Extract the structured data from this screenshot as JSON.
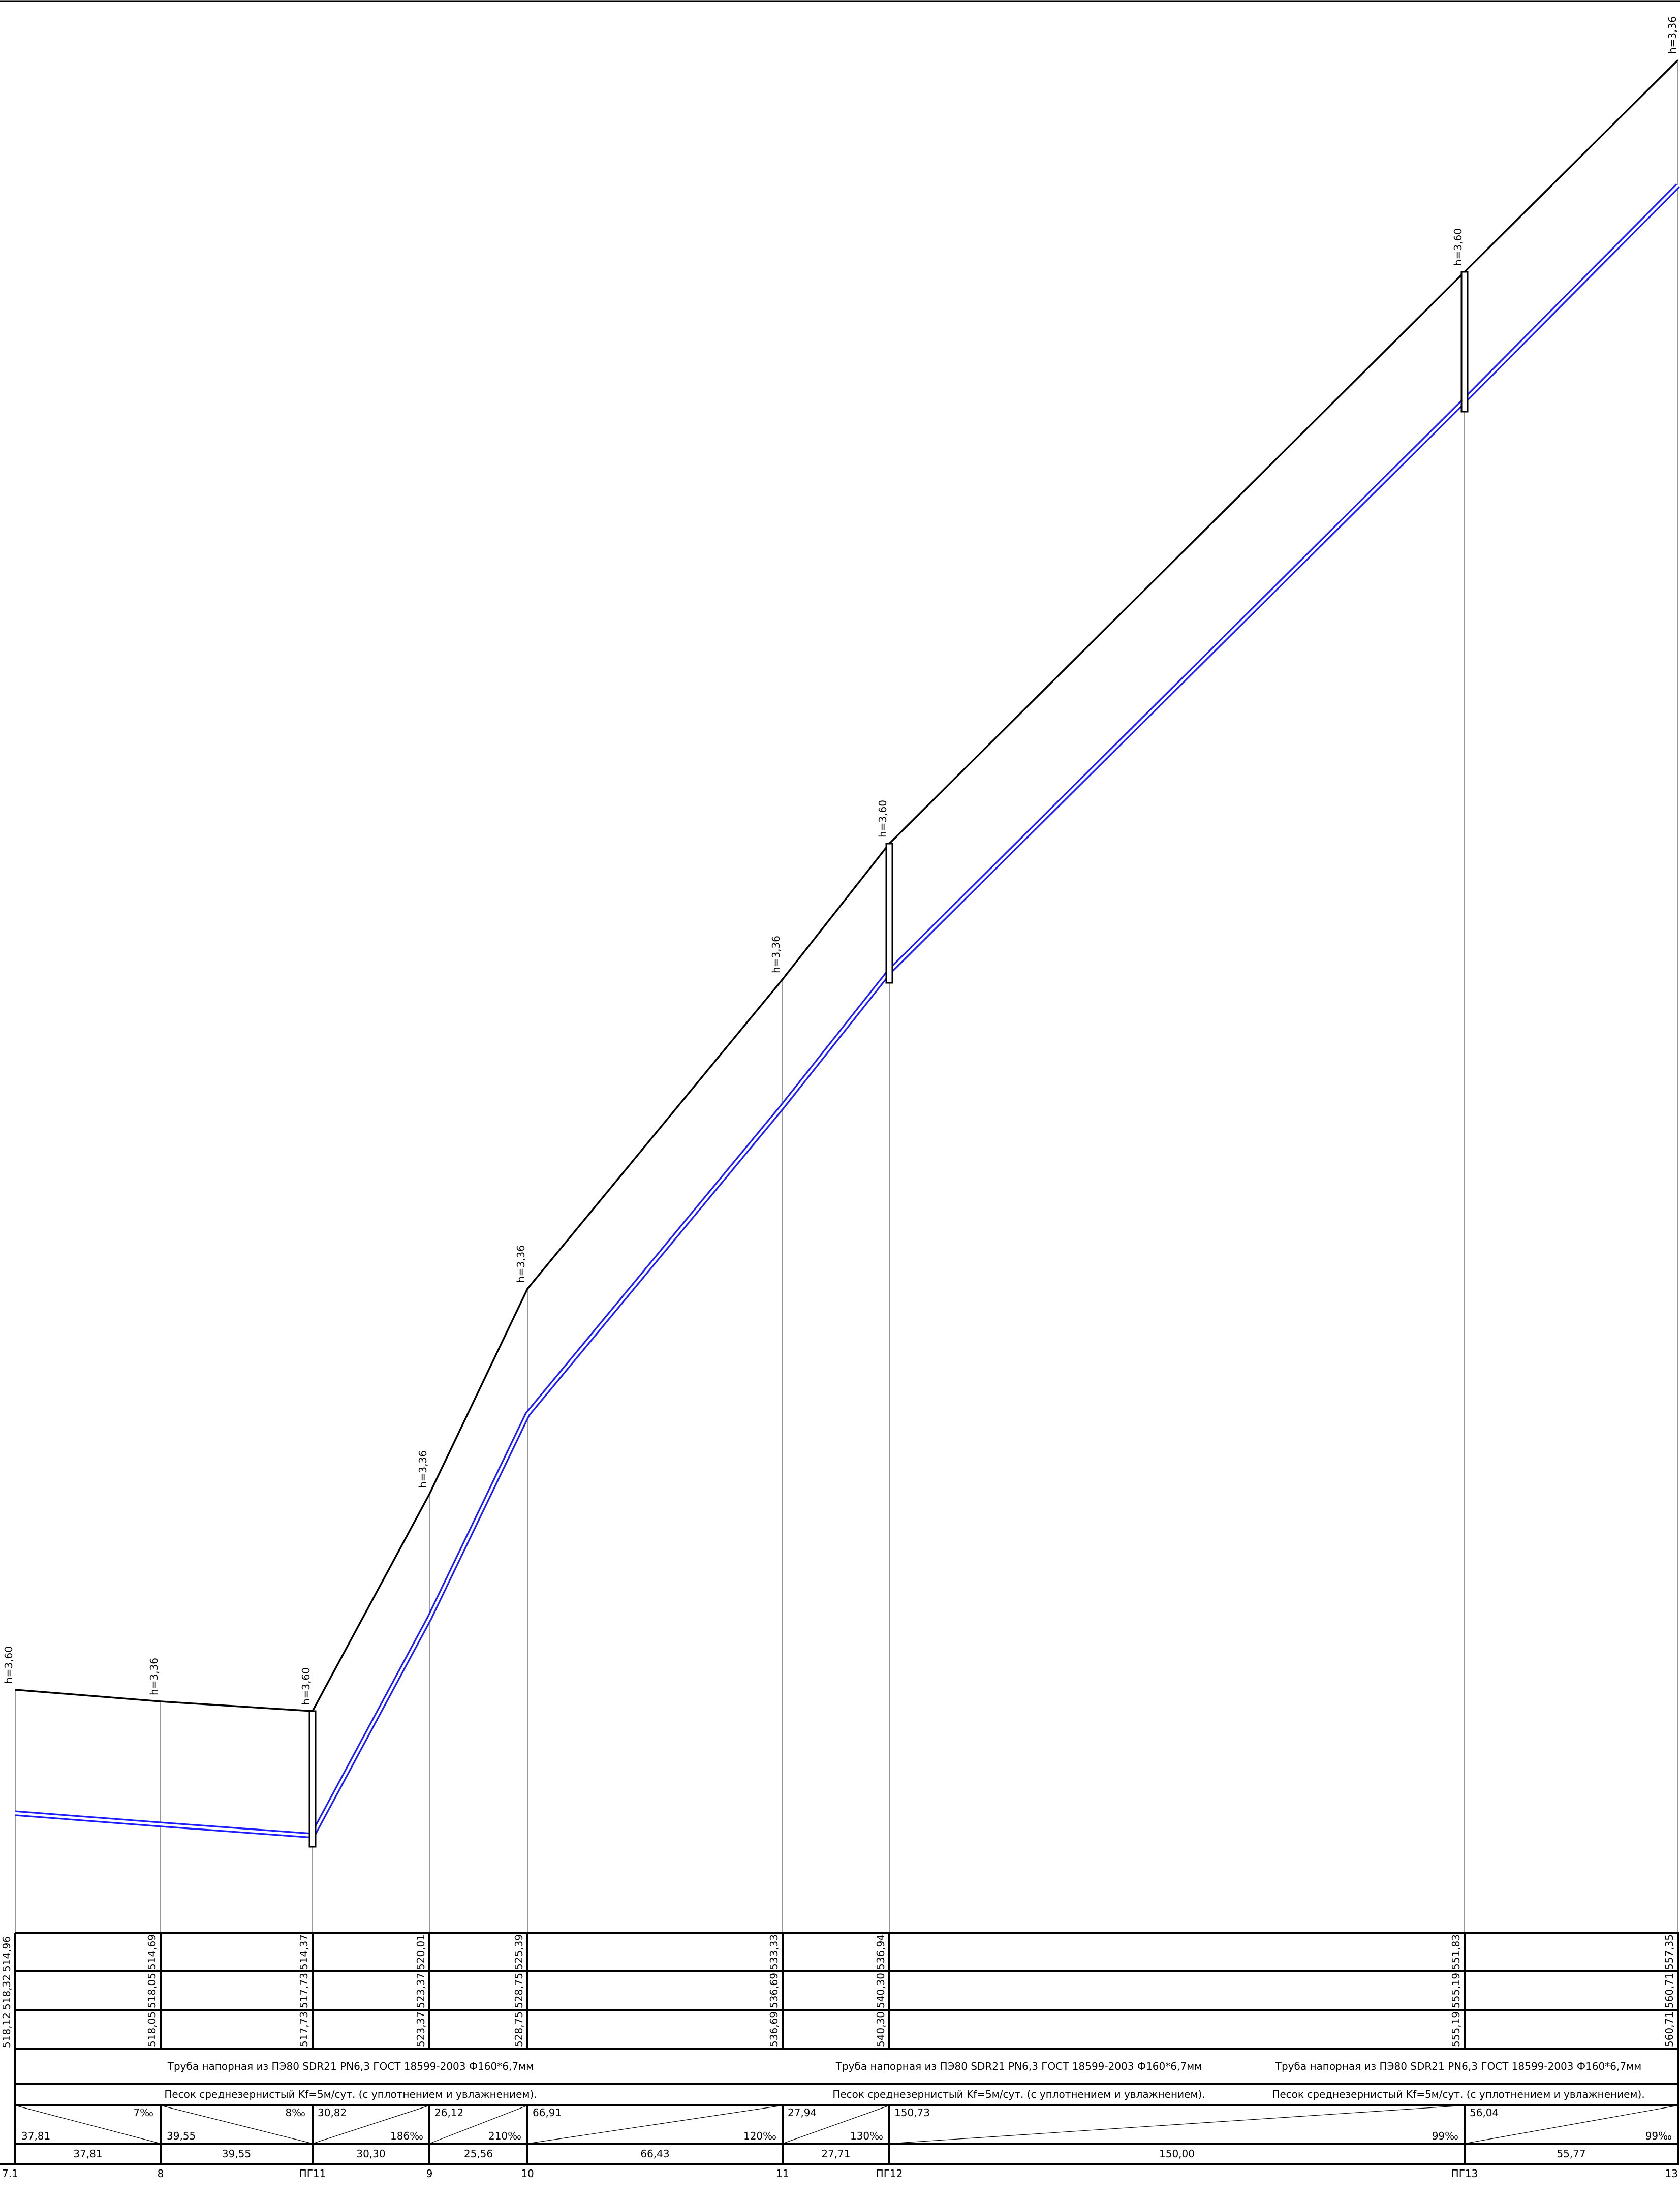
{
  "profile": {
    "stations": [
      {
        "name": "7.1",
        "ground_elev": "518,12",
        "design_elev": "",
        "pipe_elev": "518,12",
        "depth": "h=3,60",
        "well": false
      },
      {
        "name": "8",
        "ground_elev": "514,69",
        "design_elev": "518,05",
        "pipe_elev": "518,05",
        "depth": "h=3,36",
        "well": false
      },
      {
        "name": "ПГ11",
        "ground_elev": "514,37",
        "design_elev": "517,73",
        "pipe_elev": "517,73",
        "depth": "h=3,60",
        "well": true
      },
      {
        "name": "9",
        "ground_elev": "520,01",
        "design_elev": "523,37",
        "pipe_elev": "523,37",
        "depth": "h=3,36",
        "well": false
      },
      {
        "name": "10",
        "ground_elev": "525,39",
        "design_elev": "528,75",
        "pipe_elev": "528,75",
        "depth": "h=3,36",
        "well": false
      },
      {
        "name": "11",
        "ground_elev": "533,33",
        "design_elev": "536,69",
        "pipe_elev": "536,69",
        "depth": "h=3,36",
        "well": false
      },
      {
        "name": "ПГ12",
        "ground_elev": "536,94",
        "design_elev": "540,30",
        "pipe_elev": "540,30",
        "depth": "h=3,60",
        "well": true
      },
      {
        "name": "ПГ13",
        "ground_elev": "551,83",
        "design_elev": "555,19",
        "pipe_elev": "555,19",
        "depth": "h=3,60",
        "well": true
      },
      {
        "name": "13",
        "ground_elev": "557,35",
        "design_elev": "560,71",
        "pipe_elev": "560,71",
        "depth": "h=3,36",
        "well": false
      }
    ],
    "left_edge_values": {
      "row1": "514,96",
      "row2": "518,32",
      "row3": "518,12"
    },
    "pipe_notes": [
      "Труба напорная из ПЭ80 SDR21 PN6,3 ГОСТ 18599-2003 Ф160*6,7мм",
      "Труба напорная из ПЭ80 SDR21 PN6,3 ГОСТ 18599-2003 Ф160*6,7мм",
      "Труба напорная из ПЭ80 SDR21 PN6,3 ГОСТ 18599-2003 Ф160*6,7мм"
    ],
    "base_notes": [
      "Песок среднезернистый Kf=5м/сут. (с уплотнением и увлажнением).",
      "Песок среднезернистый Kf=5м/сут. (с уплотнением и увлажнением).",
      "Песок среднезернистый Kf=5м/сут. (с уплотнением и увлажнением)."
    ],
    "slope_segments": [
      {
        "length": "37,81",
        "slope": "7‰"
      },
      {
        "length": "39,55",
        "slope": "8‰"
      },
      {
        "length": "30,82",
        "slope": "186‰"
      },
      {
        "length": "26,12",
        "slope": "210‰"
      },
      {
        "length": "66,91",
        "slope": "120‰"
      },
      {
        "length": "27,94",
        "slope": "130‰"
      },
      {
        "length": "150,73",
        "slope": "99‰"
      },
      {
        "length": "56,04",
        "slope": "99‰"
      }
    ],
    "distances": [
      "37,81",
      "39,55",
      "30,30",
      "25,56",
      "66,43",
      "27,71",
      "150,00",
      "55,77"
    ]
  }
}
